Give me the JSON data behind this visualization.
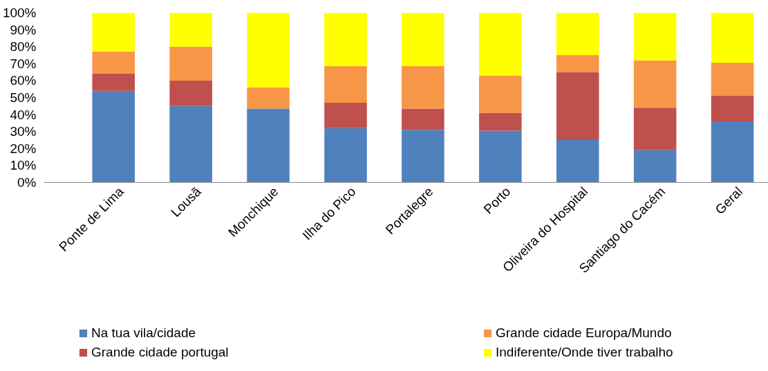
{
  "chart_data": {
    "type": "bar",
    "stacked": true,
    "categories": [
      "Ponte de Lima",
      "Lousã",
      "Monchique",
      "Ilha do Pico",
      "Portalegre",
      "Porto",
      "Oliveira do Hospital",
      "Santiago do Cacém",
      "Geral"
    ],
    "series": [
      {
        "name": "Na tua vila/cidade",
        "color": "#4f81bd",
        "values": [
          54,
          45,
          43.5,
          32,
          31,
          30.5,
          25,
          19,
          36
        ]
      },
      {
        "name": "Grande cidade portugal",
        "color": "#c0504d",
        "values": [
          10,
          15,
          0,
          15,
          12.5,
          10.5,
          40,
          25,
          15
        ]
      },
      {
        "name": "Grande cidade Europa/Mundo",
        "color": "#f79646",
        "values": [
          13,
          20,
          12.5,
          21.5,
          25,
          22,
          10,
          28,
          19.5
        ]
      },
      {
        "name": "Indiferente/Onde tiver trabalho",
        "color": "#ffff00",
        "values": [
          23,
          20,
          44,
          31.5,
          31.5,
          37,
          25,
          28,
          29.5
        ]
      }
    ],
    "ylim": [
      0,
      100
    ],
    "yticks": [
      {
        "value": 0,
        "label": "0%"
      },
      {
        "value": 10,
        "label": "10%"
      },
      {
        "value": 20,
        "label": "20%"
      },
      {
        "value": 30,
        "label": "30%"
      },
      {
        "value": 40,
        "label": "40%"
      },
      {
        "value": 50,
        "label": "50%"
      },
      {
        "value": 60,
        "label": "60%"
      },
      {
        "value": 70,
        "label": "70%"
      },
      {
        "value": 80,
        "label": "80%"
      },
      {
        "value": 90,
        "label": "90%"
      },
      {
        "value": 100,
        "label": "100%"
      }
    ],
    "grid": false,
    "legend": "bottom"
  }
}
